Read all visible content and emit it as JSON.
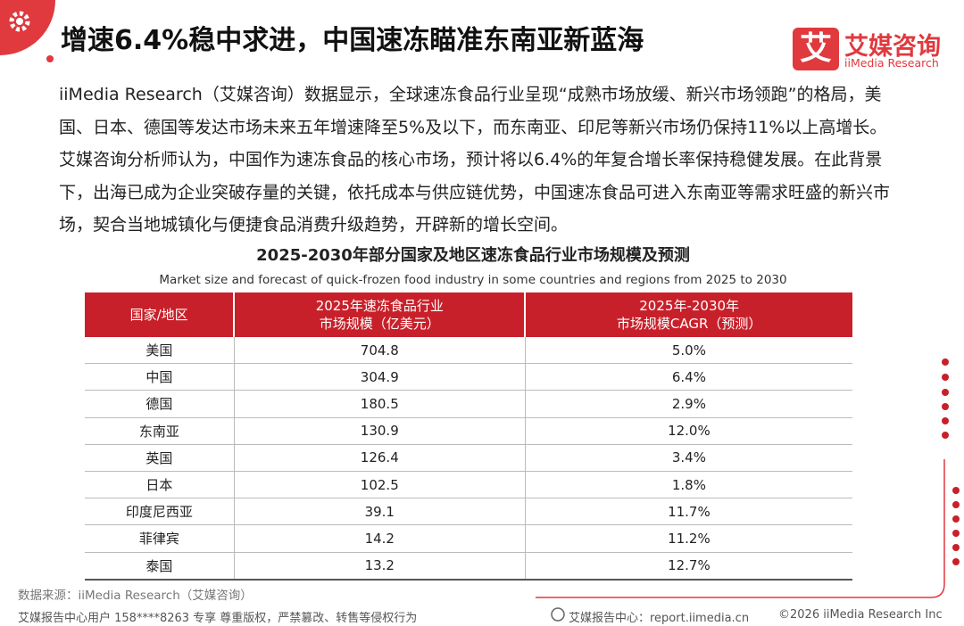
{
  "header": {
    "title": "增速6.4%稳中求进，中国速冻瞄准东南亚新蓝海",
    "logo_mark": "艾",
    "logo_name": "艾媒咨询",
    "logo_sub": "iiMedia Research"
  },
  "paragraph": "iiMedia Research（艾媒咨询）数据显示，全球速冻食品行业呈现“成熟市场放缓、新兴市场领跑”的格局，美国、日本、德国等发达市场未来五年增速降至5%及以下，而东南亚、印尼等新兴市场仍保持11%以上高增长。艾媒咨询分析师认为，中国作为速冻食品的核心市场，预计将以6.4%的年复合增长率保持稳健发展。在此背景下，出海已成为企业突破存量的关键，依托成本与供应链优势，中国速冻食品可进入东南亚等需求旺盛的新兴市场，契合当地城镇化与便捷食品消费升级趋势，开辟新的增长空间。",
  "table": {
    "title": "2025-2030年部分国家及地区速冻食品行业市场规模及预测",
    "subtitle": "Market size and forecast of quick-frozen food industry in some countries and regions from 2025 to 2030",
    "columns": [
      [
        "国家/地区"
      ],
      [
        "2025年速冻食品行业",
        "市场规模（亿美元）"
      ],
      [
        "2025年-2030年",
        "市场规模CAGR（预测）"
      ]
    ],
    "rows": [
      [
        "美国",
        "704.8",
        "5.0%"
      ],
      [
        "中国",
        "304.9",
        "6.4%"
      ],
      [
        "德国",
        "180.5",
        "2.9%"
      ],
      [
        "东南亚",
        "130.9",
        "12.0%"
      ],
      [
        "英国",
        "126.4",
        "3.4%"
      ],
      [
        "日本",
        "102.5",
        "1.8%"
      ],
      [
        "印度尼西亚",
        "39.1",
        "11.7%"
      ],
      [
        "菲律宾",
        "14.2",
        "11.2%"
      ],
      [
        "泰国",
        "13.2",
        "12.7%"
      ]
    ]
  },
  "source": "数据来源：iiMedia Research（艾媒咨询）",
  "footer": {
    "notice": "艾媒报告中心用户 158****8263 专享 尊重版权，严禁篡改、转售等侵权行为",
    "site": "艾媒报告中心：report.iimedia.cn",
    "copyright": "©2026  iiMedia Research  Inc"
  }
}
